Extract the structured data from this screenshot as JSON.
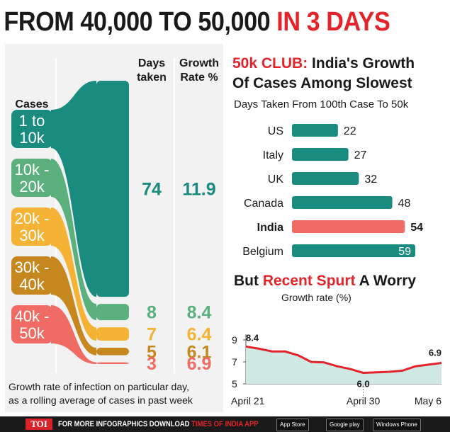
{
  "headline": {
    "part1": "FROM 40,000 TO 50,000 ",
    "part2": "IN 3 DAYS"
  },
  "left": {
    "cases_label": "Cases",
    "col_days": [
      "Days",
      "taken"
    ],
    "col_growth": [
      "Growth",
      "Rate %"
    ],
    "caption": [
      "Growth rate of infection on particular day,",
      "as a rolling average of cases in past week"
    ]
  },
  "chart_data": [
    {
      "type": "table",
      "columns": [
        "Cases",
        "Days taken",
        "Growth Rate %"
      ],
      "rows": [
        {
          "cases": [
            "1 to",
            "10k"
          ],
          "days": 74,
          "growth": "11.9",
          "color": "#1a8b7f"
        },
        {
          "cases": [
            "10k -",
            "20k"
          ],
          "days": 8,
          "growth": "8.4",
          "color": "#5bb07e"
        },
        {
          "cases": [
            "20k -",
            "30k"
          ],
          "days": 7,
          "growth": "6.4",
          "color": "#f5b335"
        },
        {
          "cases": [
            "30k -",
            "40k"
          ],
          "days": 5,
          "growth": "6.1",
          "color": "#c6881e"
        },
        {
          "cases": [
            "40k -",
            "50k"
          ],
          "days": 3,
          "growth": "6.9",
          "color": "#ef6b63"
        }
      ]
    },
    {
      "type": "bar",
      "title_red": "50k CLUB:",
      "title_black": [
        " India's Growth",
        "Of Cases Among Slowest"
      ],
      "subtitle": "Days Taken From 100th Case To 50k",
      "categories": [
        "US",
        "Italy",
        "UK",
        "Canada",
        "India",
        "Belgium"
      ],
      "values": [
        22,
        27,
        32,
        48,
        54,
        59
      ],
      "highlight": "India",
      "bar_color": "#1a8b7f",
      "highlight_color": "#ef6b63"
    },
    {
      "type": "area",
      "title_parts": [
        "But ",
        "Recent Spurt",
        " A Worry"
      ],
      "ylabel": "Growth rate (%)",
      "yticks": [
        "9",
        "7",
        "5"
      ],
      "ylim": [
        5,
        9
      ],
      "xticks": [
        "April 21",
        "April 30",
        "May 6"
      ],
      "x": [
        "Apr 21",
        "Apr 22",
        "Apr 23",
        "Apr 24",
        "Apr 25",
        "Apr 26",
        "Apr 27",
        "Apr 28",
        "Apr 29",
        "Apr 30",
        "May 1",
        "May 2",
        "May 3",
        "May 4",
        "May 5",
        "May 6"
      ],
      "values": [
        8.4,
        8.2,
        7.95,
        7.95,
        7.6,
        7.0,
        6.95,
        6.6,
        6.35,
        6.0,
        6.05,
        6.1,
        6.2,
        6.6,
        6.75,
        6.9
      ],
      "labels": [
        {
          "x": "Apr 21",
          "text": "8.4"
        },
        {
          "x": "Apr 30",
          "text": "6.0"
        },
        {
          "x": "May 6",
          "text": "6.9"
        }
      ],
      "fill_color": "#cfe8e4",
      "line_color": "#e3242b"
    }
  ],
  "footer": {
    "toi": "TOI",
    "text1": "FOR MORE  INFOGRAPHICS DOWNLOAD ",
    "text2": "TIMES OF INDIA APP",
    "app_store": "App Store",
    "google_play": "Google play",
    "windows": "Windows Phone"
  }
}
